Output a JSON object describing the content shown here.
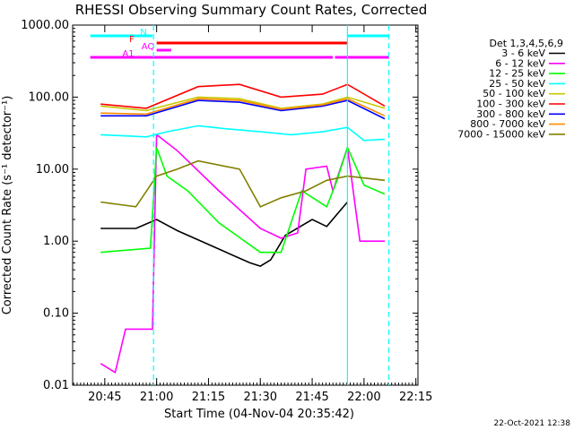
{
  "chart_data": {
    "type": "line",
    "title": "RHESSI Observing Summary Count Rates, Corrected",
    "xlabel": "Start Time (04-Nov-04 20:35:42)",
    "ylabel": "Corrected Count Rate (s⁻¹ detector⁻¹)",
    "yscale": "log",
    "ylim": [
      0.01,
      1000
    ],
    "x_ticks": [
      "20:45",
      "21:00",
      "21:15",
      "21:30",
      "21:45",
      "22:00",
      "22:15"
    ],
    "y_ticks": [
      "1000.00",
      "100.00",
      "10.00",
      "1.00",
      "0.10",
      "0.01"
    ],
    "footer_date": "22-Oct-2021 12:38",
    "legend_header": "Det 1,3,4,5,6,9",
    "series": [
      {
        "name": "3 - 6 keV",
        "color": "#000000",
        "values": [
          [
            20.73,
            1.5
          ],
          [
            20.9,
            1.5
          ],
          [
            21.0,
            2.0
          ],
          [
            21.1,
            1.4
          ],
          [
            21.25,
            0.9
          ],
          [
            21.45,
            0.5
          ],
          [
            21.5,
            0.45
          ],
          [
            21.55,
            0.55
          ],
          [
            21.62,
            1.2
          ],
          [
            21.75,
            2.0
          ],
          [
            21.82,
            1.6
          ],
          [
            21.92,
            3.5
          ]
        ]
      },
      {
        "name": "6 - 12 keV",
        "color": "#ff00ff",
        "values": [
          [
            20.73,
            0.02
          ],
          [
            20.8,
            0.015
          ],
          [
            20.85,
            0.06
          ],
          [
            20.98,
            0.06
          ],
          [
            21.0,
            30
          ],
          [
            21.1,
            18
          ],
          [
            21.3,
            5
          ],
          [
            21.5,
            1.5
          ],
          [
            21.6,
            1.1
          ],
          [
            21.68,
            1.3
          ],
          [
            21.72,
            10
          ],
          [
            21.82,
            11
          ],
          [
            21.85,
            5
          ],
          [
            21.92,
            20
          ],
          [
            21.98,
            1.0
          ],
          [
            22.1,
            1.0
          ]
        ]
      },
      {
        "name": "12 - 25 keV",
        "color": "#00ff00",
        "values": [
          [
            20.73,
            0.7
          ],
          [
            20.97,
            0.8
          ],
          [
            21.0,
            20
          ],
          [
            21.05,
            8
          ],
          [
            21.15,
            5
          ],
          [
            21.3,
            1.8
          ],
          [
            21.5,
            0.7
          ],
          [
            21.6,
            0.7
          ],
          [
            21.7,
            5
          ],
          [
            21.82,
            3
          ],
          [
            21.87,
            7
          ],
          [
            21.92,
            20
          ],
          [
            22.0,
            6
          ],
          [
            22.1,
            4.5
          ]
        ]
      },
      {
        "name": "25 - 50 keV",
        "color": "#00ffff",
        "values": [
          [
            20.73,
            30
          ],
          [
            20.95,
            28
          ],
          [
            21.05,
            33
          ],
          [
            21.2,
            40
          ],
          [
            21.35,
            36
          ],
          [
            21.5,
            33
          ],
          [
            21.65,
            30
          ],
          [
            21.8,
            33
          ],
          [
            21.92,
            38
          ],
          [
            22.0,
            25
          ],
          [
            22.1,
            26
          ]
        ]
      },
      {
        "name": "50 - 100 keV",
        "color": "#c8c800",
        "values": [
          [
            20.73,
            75
          ],
          [
            20.95,
            65
          ],
          [
            21.2,
            100
          ],
          [
            21.4,
            95
          ],
          [
            21.6,
            70
          ],
          [
            21.8,
            80
          ],
          [
            21.92,
            100
          ],
          [
            22.1,
            70
          ]
        ]
      },
      {
        "name": "100 - 300 keV",
        "color": "#ff0000",
        "values": [
          [
            20.73,
            80
          ],
          [
            20.95,
            70
          ],
          [
            21.2,
            140
          ],
          [
            21.4,
            150
          ],
          [
            21.6,
            100
          ],
          [
            21.8,
            110
          ],
          [
            21.92,
            150
          ],
          [
            22.1,
            75
          ]
        ]
      },
      {
        "name": "300 - 800 keV",
        "color": "#0000ff",
        "values": [
          [
            20.73,
            55
          ],
          [
            20.95,
            55
          ],
          [
            21.2,
            90
          ],
          [
            21.4,
            85
          ],
          [
            21.6,
            65
          ],
          [
            21.8,
            75
          ],
          [
            21.92,
            90
          ],
          [
            22.1,
            50
          ]
        ]
      },
      {
        "name": "800 - 7000 keV",
        "color": "#ff8c00",
        "values": [
          [
            20.73,
            60
          ],
          [
            20.95,
            58
          ],
          [
            21.2,
            95
          ],
          [
            21.4,
            90
          ],
          [
            21.6,
            68
          ],
          [
            21.8,
            78
          ],
          [
            21.92,
            95
          ],
          [
            22.1,
            55
          ]
        ]
      },
      {
        "name": "7000 - 15000 keV",
        "color": "#808000",
        "values": [
          [
            20.73,
            3.5
          ],
          [
            20.9,
            3.0
          ],
          [
            21.0,
            8
          ],
          [
            21.1,
            10
          ],
          [
            21.2,
            13
          ],
          [
            21.4,
            10
          ],
          [
            21.5,
            3
          ],
          [
            21.6,
            4
          ],
          [
            21.72,
            5
          ],
          [
            21.82,
            7
          ],
          [
            21.92,
            8
          ],
          [
            22.1,
            7
          ]
        ]
      }
    ],
    "state_bars": [
      {
        "label": "N",
        "color": "#00ffff",
        "segments": [
          [
            20.68,
            20.98
          ],
          [
            21.92,
            22.12
          ]
        ]
      },
      {
        "label": "F",
        "color": "#ff0000",
        "segments": [
          [
            21.0,
            21.92
          ]
        ]
      },
      {
        "label": "AQ",
        "color": "#ff00ff",
        "segments": [
          [
            21.0,
            21.07
          ]
        ]
      },
      {
        "label": "A1",
        "color": "#ff00ff",
        "segments": [
          [
            20.68,
            21.85
          ],
          [
            21.86,
            22.12
          ]
        ]
      }
    ],
    "vlines": [
      {
        "x": 20.985,
        "color": "#00ffff",
        "style": "dashed"
      },
      {
        "x": 21.92,
        "color": "#00ffff",
        "style": "solid"
      },
      {
        "x": 22.12,
        "color": "#00ffff",
        "style": "dashed"
      }
    ]
  }
}
